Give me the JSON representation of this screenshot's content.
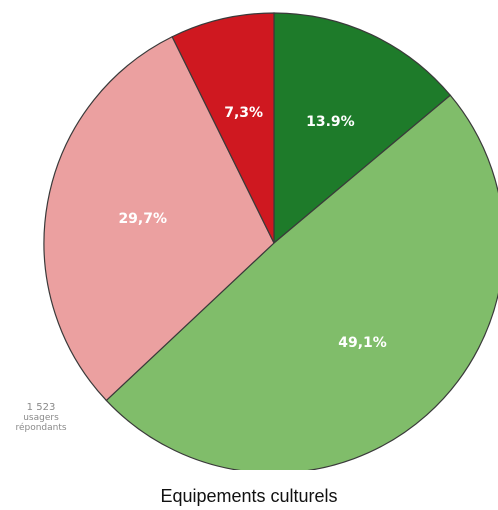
{
  "chart_data": {
    "type": "pie",
    "title": "Equipements culturels",
    "slices": [
      {
        "label": "13.9%",
        "value": 13.9,
        "color": "#1e7b2a"
      },
      {
        "label": "49,1%",
        "value": 49.1,
        "color": "#80bd6a"
      },
      {
        "label": "29,7%",
        "value": 29.7,
        "color": "#eba0a0"
      },
      {
        "label": "7,3%",
        "value": 7.3,
        "color": "#cf1820"
      }
    ],
    "annotation": {
      "count": "1 523",
      "unit": "usagers répondants"
    }
  }
}
